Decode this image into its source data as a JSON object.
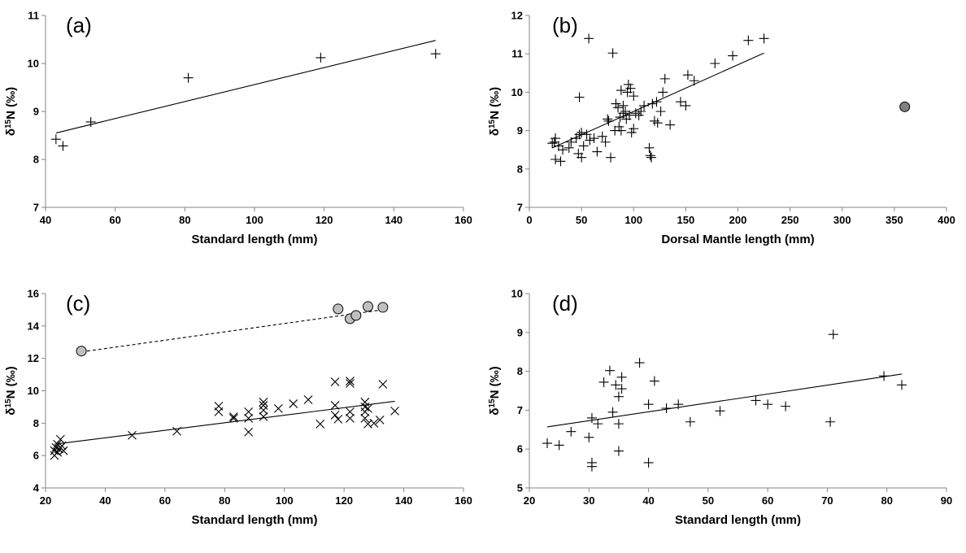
{
  "chart_data": [
    {
      "type": "scatter",
      "panel_label": "(a)",
      "xlabel": "Standard length (mm)",
      "ylabel_main": "δ",
      "ylabel_sup": "15",
      "ylabel_rest": "N (‰)",
      "xlim": [
        40,
        160
      ],
      "xticks": [
        40,
        60,
        80,
        100,
        120,
        140,
        160
      ],
      "ylim": [
        7,
        11
      ],
      "yticks": [
        7,
        8,
        9,
        10,
        11
      ],
      "series": [
        {
          "marker": "plus",
          "fill": "#000000",
          "points": [
            [
              43,
              8.42
            ],
            [
              45,
              8.28
            ],
            [
              53,
              8.78
            ],
            [
              81,
              9.7
            ],
            [
              119,
              10.12
            ],
            [
              152,
              10.2
            ]
          ]
        }
      ],
      "trendlines": [
        {
          "style": "solid",
          "from": [
            43,
            8.55
          ],
          "to": [
            152,
            10.48
          ]
        }
      ]
    },
    {
      "type": "scatter",
      "panel_label": "(b)",
      "xlabel": "Dorsal Mantle length (mm)",
      "ylabel_main": "δ",
      "ylabel_sup": "15",
      "ylabel_rest": "N (‰)",
      "xlim": [
        0,
        400
      ],
      "xticks": [
        0,
        50,
        100,
        150,
        200,
        250,
        300,
        350,
        400
      ],
      "ylim": [
        7,
        12
      ],
      "yticks": [
        7,
        8,
        9,
        10,
        11,
        12
      ],
      "series": [
        {
          "marker": "plus",
          "fill": "#000000",
          "points": [
            [
              22,
              8.67
            ],
            [
              24,
              8.7
            ],
            [
              25,
              8.8
            ],
            [
              25,
              8.25
            ],
            [
              28,
              8.6
            ],
            [
              30,
              8.2
            ],
            [
              32,
              8.5
            ],
            [
              38,
              8.55
            ],
            [
              40,
              8.7
            ],
            [
              45,
              8.8
            ],
            [
              47,
              8.4
            ],
            [
              48,
              8.9
            ],
            [
              48,
              9.87
            ],
            [
              50,
              8.3
            ],
            [
              50,
              8.95
            ],
            [
              52,
              8.6
            ],
            [
              55,
              8.9
            ],
            [
              57,
              11.4
            ],
            [
              58,
              8.75
            ],
            [
              62,
              8.8
            ],
            [
              65,
              8.45
            ],
            [
              70,
              8.85
            ],
            [
              73,
              8.7
            ],
            [
              75,
              9.3
            ],
            [
              76,
              9.25
            ],
            [
              78,
              8.3
            ],
            [
              80,
              11.02
            ],
            [
              82,
              9.0
            ],
            [
              83,
              9.7
            ],
            [
              85,
              9.6
            ],
            [
              86,
              9.1
            ],
            [
              87,
              9.35
            ],
            [
              88,
              9.0
            ],
            [
              88,
              10.05
            ],
            [
              90,
              9.45
            ],
            [
              90,
              9.65
            ],
            [
              92,
              9.5
            ],
            [
              93,
              9.3
            ],
            [
              94,
              10.0
            ],
            [
              95,
              10.2
            ],
            [
              96,
              9.4
            ],
            [
              97,
              10.1
            ],
            [
              98,
              8.95
            ],
            [
              100,
              9.05
            ],
            [
              100,
              9.9
            ],
            [
              102,
              9.45
            ],
            [
              105,
              9.4
            ],
            [
              107,
              9.5
            ],
            [
              110,
              9.65
            ],
            [
              115,
              8.55
            ],
            [
              116,
              8.35
            ],
            [
              117,
              8.3
            ],
            [
              118,
              9.7
            ],
            [
              120,
              9.25
            ],
            [
              122,
              9.75
            ],
            [
              123,
              9.2
            ],
            [
              126,
              9.5
            ],
            [
              128,
              10.0
            ],
            [
              130,
              10.35
            ],
            [
              135,
              9.15
            ],
            [
              145,
              9.75
            ],
            [
              150,
              9.65
            ],
            [
              152,
              10.45
            ],
            [
              158,
              10.3
            ],
            [
              178,
              10.75
            ],
            [
              195,
              10.95
            ],
            [
              210,
              11.35
            ],
            [
              225,
              11.4
            ]
          ]
        },
        {
          "marker": "circle",
          "fill": "#808080",
          "points": [
            [
              360,
              9.62
            ]
          ]
        }
      ],
      "trendlines": [
        {
          "style": "solid",
          "from": [
            22,
            8.55
          ],
          "to": [
            225,
            11.02
          ]
        }
      ]
    },
    {
      "type": "scatter",
      "panel_label": "(c)",
      "xlabel": "Standard length (mm)",
      "ylabel_main": "δ",
      "ylabel_sup": "15",
      "ylabel_rest": "N (‰)",
      "xlim": [
        20,
        160
      ],
      "xticks": [
        20,
        40,
        60,
        80,
        100,
        120,
        140,
        160
      ],
      "ylim": [
        4,
        16
      ],
      "yticks": [
        4,
        6,
        8,
        10,
        12,
        14,
        16
      ],
      "series": [
        {
          "marker": "cross",
          "fill": "#000000",
          "points": [
            [
              23,
              6.0
            ],
            [
              23,
              6.3
            ],
            [
              23.5,
              6.5
            ],
            [
              24,
              6.2
            ],
            [
              24,
              6.7
            ],
            [
              24.5,
              6.4
            ],
            [
              25,
              7.0
            ],
            [
              25,
              6.5
            ],
            [
              25.5,
              6.6
            ],
            [
              26,
              6.3
            ],
            [
              49,
              7.25
            ],
            [
              64,
              7.5
            ],
            [
              78,
              9.05
            ],
            [
              78,
              8.7
            ],
            [
              83,
              8.4
            ],
            [
              83,
              8.3
            ],
            [
              88,
              8.7
            ],
            [
              88,
              8.3
            ],
            [
              88,
              7.45
            ],
            [
              93,
              9.3
            ],
            [
              93,
              9.1
            ],
            [
              93,
              8.8
            ],
            [
              93,
              8.4
            ],
            [
              98,
              8.9
            ],
            [
              103,
              9.2
            ],
            [
              108,
              9.45
            ],
            [
              112,
              7.95
            ],
            [
              117,
              10.55
            ],
            [
              117,
              9.1
            ],
            [
              117,
              8.5
            ],
            [
              118,
              8.25
            ],
            [
              122,
              10.6
            ],
            [
              122,
              10.45
            ],
            [
              122,
              8.7
            ],
            [
              122,
              8.3
            ],
            [
              127,
              9.3
            ],
            [
              127,
              9.0
            ],
            [
              127,
              8.7
            ],
            [
              127,
              8.3
            ],
            [
              128,
              8.9
            ],
            [
              128,
              7.95
            ],
            [
              130,
              8.0
            ],
            [
              132,
              8.2
            ],
            [
              133,
              10.4
            ],
            [
              137,
              8.75
            ]
          ]
        },
        {
          "marker": "circle",
          "fill": "#c0c0c0",
          "points": [
            [
              32,
              12.45
            ],
            [
              118,
              15.05
            ],
            [
              122,
              14.45
            ],
            [
              124,
              14.65
            ],
            [
              128,
              15.2
            ],
            [
              133,
              15.15
            ]
          ]
        }
      ],
      "trendlines": [
        {
          "style": "solid",
          "from": [
            23,
            6.7
          ],
          "to": [
            137,
            9.35
          ]
        },
        {
          "style": "dashed",
          "from": [
            32,
            12.4
          ],
          "to": [
            133,
            15.0
          ]
        }
      ]
    },
    {
      "type": "scatter",
      "panel_label": "(d)",
      "xlabel": "Standard length (mm)",
      "ylabel_main": "δ",
      "ylabel_sup": "15",
      "ylabel_rest": "N (‰)",
      "xlim": [
        20,
        90
      ],
      "xticks": [
        20,
        30,
        40,
        50,
        60,
        70,
        80,
        90
      ],
      "ylim": [
        5,
        10
      ],
      "yticks": [
        5,
        6,
        7,
        8,
        9,
        10
      ],
      "series": [
        {
          "marker": "plus",
          "fill": "#000000",
          "points": [
            [
              23,
              6.15
            ],
            [
              25,
              6.1
            ],
            [
              27,
              6.45
            ],
            [
              30,
              6.3
            ],
            [
              30.5,
              6.8
            ],
            [
              30.5,
              5.65
            ],
            [
              30.5,
              5.55
            ],
            [
              31.5,
              6.65
            ],
            [
              32.5,
              7.72
            ],
            [
              33.5,
              8.02
            ],
            [
              34,
              6.95
            ],
            [
              34.5,
              7.65
            ],
            [
              35,
              7.35
            ],
            [
              35,
              6.65
            ],
            [
              35,
              5.95
            ],
            [
              35.5,
              7.85
            ],
            [
              35.5,
              7.55
            ],
            [
              38.5,
              8.22
            ],
            [
              40,
              7.15
            ],
            [
              40,
              5.65
            ],
            [
              41,
              7.75
            ],
            [
              43,
              7.05
            ],
            [
              45,
              7.15
            ],
            [
              47,
              6.7
            ],
            [
              52,
              6.98
            ],
            [
              58,
              7.25
            ],
            [
              60,
              7.15
            ],
            [
              63,
              7.1
            ],
            [
              70.5,
              6.7
            ],
            [
              71,
              8.95
            ],
            [
              79.5,
              7.88
            ],
            [
              82.5,
              7.65
            ]
          ]
        }
      ],
      "trendlines": [
        {
          "style": "solid",
          "from": [
            23,
            6.57
          ],
          "to": [
            82.5,
            7.93
          ]
        }
      ]
    }
  ]
}
